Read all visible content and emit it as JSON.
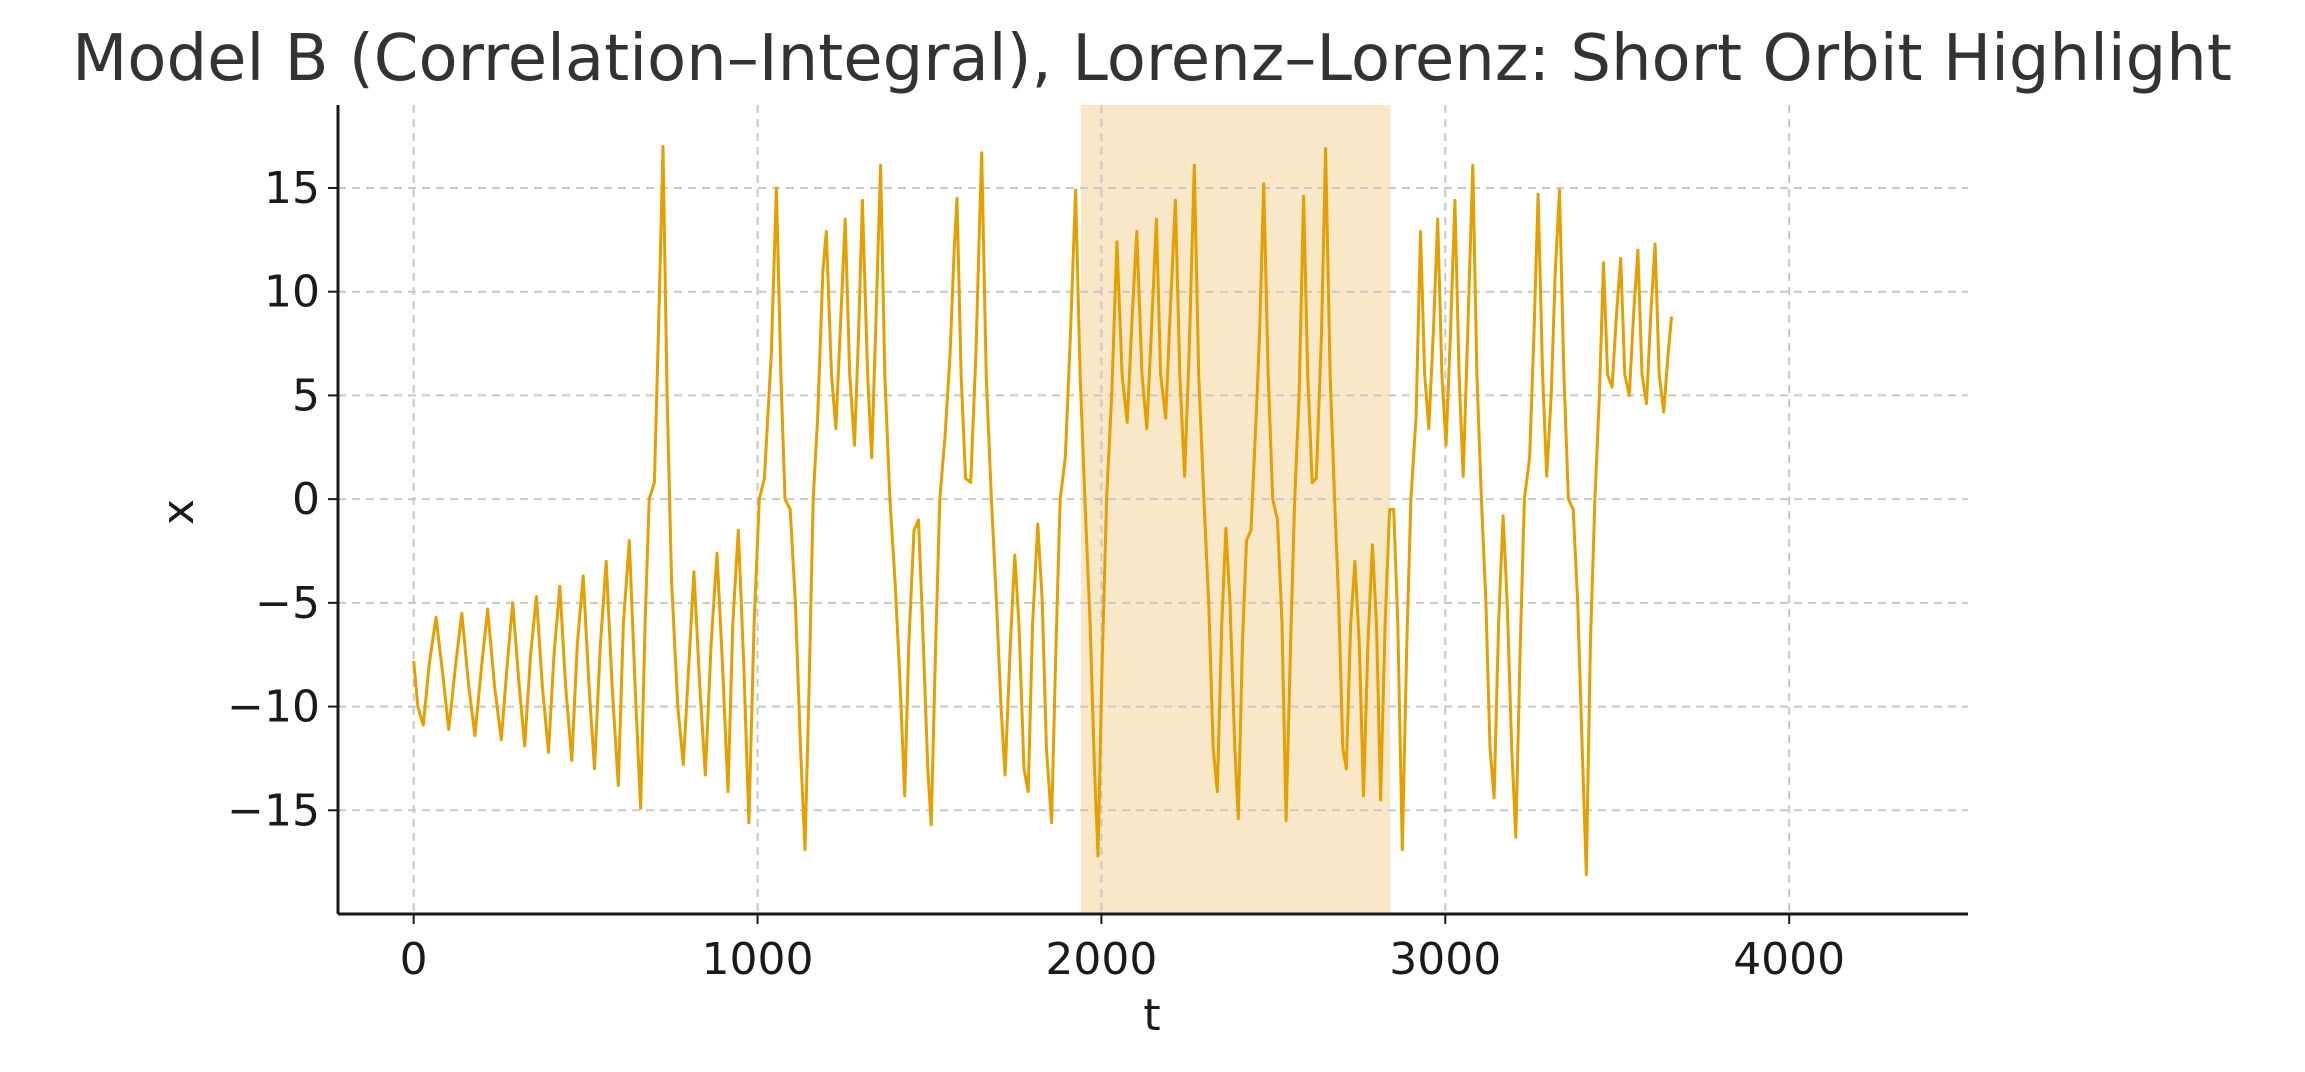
{
  "chart_data": {
    "type": "line",
    "title": "Model B (Correlation–Integral), Lorenz–Lorenz: Short Orbit Highlight",
    "xlabel": "t",
    "ylabel": "x",
    "xlim": [
      -220,
      4520
    ],
    "ylim": [
      -20,
      19
    ],
    "xticks": [
      0,
      1000,
      2000,
      3000,
      4000
    ],
    "xtick_labels": [
      "0",
      "1000",
      "2000",
      "3000",
      "4000"
    ],
    "yticks": [
      -15,
      -10,
      -5,
      0,
      5,
      10,
      15
    ],
    "ytick_labels": [
      "−15",
      "−10",
      "−5",
      "0",
      "5",
      "10",
      "15"
    ],
    "grid": true,
    "highlight": {
      "x_start": 1940,
      "x_end": 2840,
      "color": "#f9e8c8"
    },
    "series": [
      {
        "color": "#e69f00",
        "points": [
          [
            0,
            -7.8
          ],
          [
            12,
            -10
          ],
          [
            28,
            -10.9
          ],
          [
            45,
            -8
          ],
          [
            65,
            -5.7
          ],
          [
            85,
            -8.5
          ],
          [
            102,
            -11.1
          ],
          [
            122,
            -8
          ],
          [
            140,
            -5.5
          ],
          [
            160,
            -9
          ],
          [
            178,
            -11.4
          ],
          [
            198,
            -8
          ],
          [
            215,
            -5.3
          ],
          [
            235,
            -9
          ],
          [
            255,
            -11.6
          ],
          [
            272,
            -8
          ],
          [
            288,
            -5
          ],
          [
            307,
            -9
          ],
          [
            323,
            -11.9
          ],
          [
            340,
            -7.5
          ],
          [
            357,
            -4.7
          ],
          [
            374,
            -9
          ],
          [
            392,
            -12.2
          ],
          [
            408,
            -7.5
          ],
          [
            425,
            -4.2
          ],
          [
            442,
            -9
          ],
          [
            460,
            -12.6
          ],
          [
            476,
            -7
          ],
          [
            493,
            -3.7
          ],
          [
            510,
            -9
          ],
          [
            526,
            -13
          ],
          [
            543,
            -7
          ],
          [
            560,
            -3
          ],
          [
            577,
            -9
          ],
          [
            595,
            -13.8
          ],
          [
            610,
            -6
          ],
          [
            627,
            -2
          ],
          [
            644,
            -9
          ],
          [
            660,
            -14.9
          ],
          [
            673,
            -6
          ],
          [
            685,
            0
          ],
          [
            700,
            0.8
          ],
          [
            715,
            10
          ],
          [
            725,
            17
          ],
          [
            737,
            5
          ],
          [
            750,
            -4
          ],
          [
            768,
            -10
          ],
          [
            784,
            -12.8
          ],
          [
            800,
            -8
          ],
          [
            815,
            -3.5
          ],
          [
            832,
            -9
          ],
          [
            848,
            -13.3
          ],
          [
            865,
            -7
          ],
          [
            882,
            -2.6
          ],
          [
            898,
            -8
          ],
          [
            914,
            -14.1
          ],
          [
            928,
            -6
          ],
          [
            944,
            -1.5
          ],
          [
            960,
            -8
          ],
          [
            975,
            -15.6
          ],
          [
            990,
            -6
          ],
          [
            1005,
            0
          ],
          [
            1020,
            1
          ],
          [
            1040,
            7
          ],
          [
            1055,
            15
          ],
          [
            1068,
            6
          ],
          [
            1080,
            0
          ],
          [
            1095,
            -0.5
          ],
          [
            1110,
            -5
          ],
          [
            1125,
            -12
          ],
          [
            1138,
            -16.9
          ],
          [
            1150,
            -9
          ],
          [
            1162,
            0
          ],
          [
            1175,
            4
          ],
          [
            1190,
            11
          ],
          [
            1200,
            12.9
          ],
          [
            1215,
            6
          ],
          [
            1228,
            3.4
          ],
          [
            1240,
            8
          ],
          [
            1255,
            13.5
          ],
          [
            1268,
            6
          ],
          [
            1282,
            2.6
          ],
          [
            1294,
            8
          ],
          [
            1305,
            14.4
          ],
          [
            1320,
            6
          ],
          [
            1332,
            2
          ],
          [
            1345,
            9
          ],
          [
            1358,
            16.1
          ],
          [
            1370,
            6
          ],
          [
            1385,
            0
          ],
          [
            1400,
            -4
          ],
          [
            1415,
            -9
          ],
          [
            1428,
            -14.3
          ],
          [
            1440,
            -7
          ],
          [
            1455,
            -1.5
          ],
          [
            1468,
            -1
          ],
          [
            1480,
            -6
          ],
          [
            1495,
            -13
          ],
          [
            1505,
            -15.7
          ],
          [
            1518,
            -7
          ],
          [
            1530,
            0
          ],
          [
            1545,
            3
          ],
          [
            1560,
            7
          ],
          [
            1572,
            12
          ],
          [
            1580,
            14.5
          ],
          [
            1592,
            6
          ],
          [
            1605,
            1
          ],
          [
            1620,
            0.8
          ],
          [
            1635,
            7
          ],
          [
            1647,
            14
          ],
          [
            1652,
            16.7
          ],
          [
            1665,
            6
          ],
          [
            1680,
            0
          ],
          [
            1695,
            -5
          ],
          [
            1708,
            -10
          ],
          [
            1720,
            -13.3
          ],
          [
            1735,
            -7
          ],
          [
            1748,
            -2.7
          ],
          [
            1760,
            -6
          ],
          [
            1775,
            -13
          ],
          [
            1787,
            -14.1
          ],
          [
            1800,
            -6
          ],
          [
            1815,
            -1.2
          ],
          [
            1828,
            -5
          ],
          [
            1840,
            -12
          ],
          [
            1855,
            -15.6
          ],
          [
            1868,
            -7
          ],
          [
            1880,
            0
          ],
          [
            1895,
            2
          ],
          [
            1910,
            8
          ],
          [
            1925,
            14.9
          ],
          [
            1938,
            6
          ],
          [
            1952,
            0
          ],
          [
            1967,
            -6
          ],
          [
            1980,
            -13
          ],
          [
            1990,
            -17.2
          ],
          [
            2002,
            -8
          ],
          [
            2015,
            0
          ],
          [
            2030,
            5
          ],
          [
            2045,
            12.4
          ],
          [
            2060,
            6
          ],
          [
            2075,
            3.7
          ],
          [
            2090,
            9
          ],
          [
            2103,
            12.9
          ],
          [
            2118,
            6
          ],
          [
            2132,
            3.4
          ],
          [
            2145,
            8
          ],
          [
            2160,
            13.5
          ],
          [
            2172,
            6
          ],
          [
            2187,
            3.9
          ],
          [
            2200,
            9
          ],
          [
            2215,
            14.4
          ],
          [
            2228,
            6
          ],
          [
            2242,
            1.1
          ],
          [
            2255,
            7
          ],
          [
            2270,
            16.1
          ],
          [
            2283,
            6
          ],
          [
            2298,
            0
          ],
          [
            2312,
            -5
          ],
          [
            2325,
            -12
          ],
          [
            2337,
            -14.1
          ],
          [
            2350,
            -6
          ],
          [
            2362,
            -1.4
          ],
          [
            2374,
            -5
          ],
          [
            2388,
            -12
          ],
          [
            2398,
            -15.4
          ],
          [
            2410,
            -7
          ],
          [
            2422,
            -2
          ],
          [
            2435,
            -1.5
          ],
          [
            2450,
            4
          ],
          [
            2460,
            8
          ],
          [
            2472,
            15.2
          ],
          [
            2485,
            6
          ],
          [
            2498,
            0
          ],
          [
            2512,
            -1
          ],
          [
            2525,
            -6
          ],
          [
            2537,
            -15.5
          ],
          [
            2550,
            -7
          ],
          [
            2562,
            0
          ],
          [
            2575,
            5
          ],
          [
            2588,
            14.6
          ],
          [
            2600,
            6
          ],
          [
            2613,
            0.8
          ],
          [
            2625,
            1
          ],
          [
            2640,
            8
          ],
          [
            2652,
            16.9
          ],
          [
            2665,
            6
          ],
          [
            2678,
            0
          ],
          [
            2690,
            -5
          ],
          [
            2702,
            -12
          ],
          [
            2712,
            -13
          ],
          [
            2725,
            -6
          ],
          [
            2737,
            -3
          ],
          [
            2750,
            -7
          ],
          [
            2762,
            -14.3
          ],
          [
            2775,
            -7
          ],
          [
            2788,
            -2.2
          ],
          [
            2800,
            -6
          ],
          [
            2812,
            -14.5
          ],
          [
            2825,
            -6
          ],
          [
            2838,
            -0.5
          ],
          [
            2850,
            -0.5
          ],
          [
            2862,
            -6
          ],
          [
            2875,
            -16.9
          ],
          [
            2888,
            -7
          ],
          [
            2900,
            0
          ],
          [
            2915,
            4
          ],
          [
            2928,
            12.9
          ],
          [
            2940,
            6
          ],
          [
            2952,
            3.4
          ],
          [
            2965,
            8
          ],
          [
            2978,
            13.5
          ],
          [
            2990,
            6
          ],
          [
            3002,
            2.6
          ],
          [
            3015,
            8
          ],
          [
            3028,
            14.4
          ],
          [
            3040,
            6
          ],
          [
            3052,
            1.1
          ],
          [
            3065,
            8
          ],
          [
            3080,
            16.1
          ],
          [
            3092,
            6
          ],
          [
            3105,
            0
          ],
          [
            3118,
            -5
          ],
          [
            3130,
            -12
          ],
          [
            3142,
            -14.4
          ],
          [
            3155,
            -6
          ],
          [
            3168,
            -0.8
          ],
          [
            3180,
            -5
          ],
          [
            3193,
            -12
          ],
          [
            3205,
            -16.3
          ],
          [
            3218,
            -7
          ],
          [
            3230,
            0
          ],
          [
            3245,
            2
          ],
          [
            3258,
            8
          ],
          [
            3270,
            14.7
          ],
          [
            3283,
            6
          ],
          [
            3295,
            1.1
          ],
          [
            3308,
            5
          ],
          [
            3320,
            11
          ],
          [
            3332,
            14.9
          ],
          [
            3345,
            6
          ],
          [
            3358,
            0
          ],
          [
            3372,
            -0.5
          ],
          [
            3385,
            -5
          ],
          [
            3398,
            -12
          ],
          [
            3410,
            -18.1
          ],
          [
            3422,
            -7
          ],
          [
            3435,
            0
          ],
          [
            3448,
            5
          ],
          [
            3460,
            11.4
          ],
          [
            3472,
            6
          ],
          [
            3485,
            5.4
          ],
          [
            3498,
            9
          ],
          [
            3510,
            11.6
          ],
          [
            3522,
            6
          ],
          [
            3535,
            5
          ],
          [
            3548,
            9
          ],
          [
            3560,
            12
          ],
          [
            3572,
            6
          ],
          [
            3585,
            4.6
          ],
          [
            3598,
            9
          ],
          [
            3610,
            12.3
          ],
          [
            3622,
            6
          ],
          [
            3635,
            4.2
          ],
          [
            3648,
            7
          ],
          [
            3658,
            8.8
          ]
        ]
      }
    ]
  }
}
